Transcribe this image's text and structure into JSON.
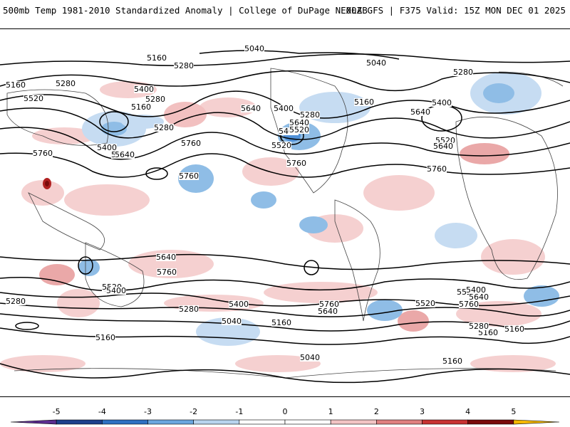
{
  "header": {
    "title": "500mb Temp 1981-2010 Standardized Anomaly | College of DuPage NEXLAB",
    "run_info": "00Z GFS | F375 Valid: 15Z MON DEC 01 2025"
  },
  "contour_labels": [
    "5160",
    "5280",
    "5040",
    "5040",
    "5160",
    "5280",
    "5400",
    "5520",
    "5280",
    "5160",
    "5400",
    "5280",
    "5640",
    "5760",
    "5640",
    "5400",
    "5280",
    "5400",
    "5520",
    "5640",
    "5160",
    "5760",
    "5400",
    "5520",
    "5640",
    "5760",
    "5280",
    "5640",
    "5520",
    "5760",
    "5640",
    "5760",
    "5640",
    "5760",
    "5280",
    "5520",
    "5400",
    "5520",
    "5760",
    "5640",
    "5280",
    "5400",
    "5160",
    "5040",
    "5160",
    "5160",
    "5640",
    "5760",
    "5400",
    "5280",
    "5160",
    "5040",
    "5160",
    "5160",
    "5520"
  ],
  "colorbar": {
    "ticks": [
      "-5",
      "-4",
      "-3",
      "-2",
      "-1",
      "0",
      "1",
      "2",
      "3",
      "4",
      "5"
    ],
    "colors": [
      "#5b2c8f",
      "#1d3f8c",
      "#2e70c2",
      "#6aa6df",
      "#b8d4ee",
      "#ffffff",
      "#ffffff",
      "#f2c4c4",
      "#e08080",
      "#c83232",
      "#7a0a0a",
      "#f5b800"
    ]
  }
}
